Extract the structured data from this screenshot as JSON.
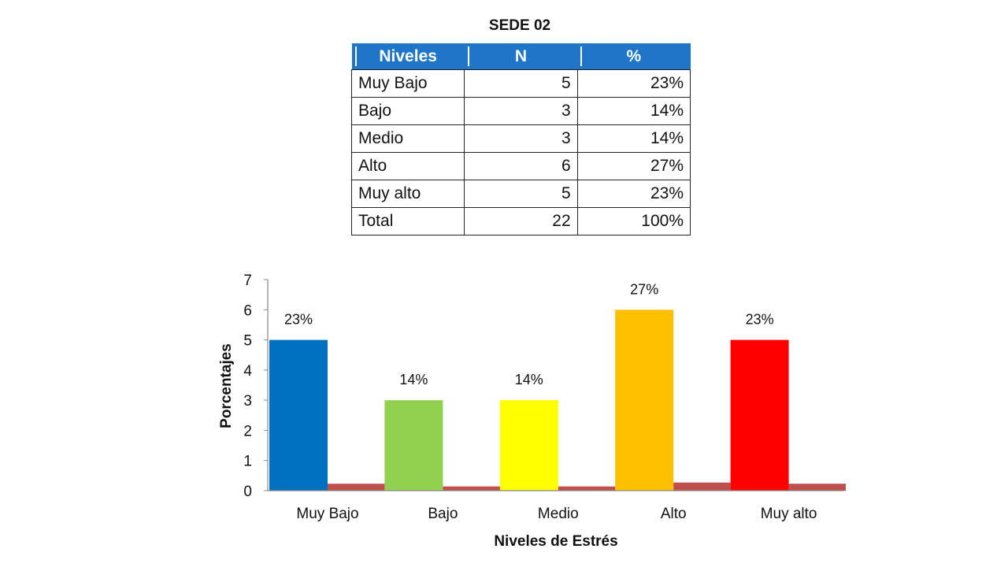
{
  "title": "SEDE 02",
  "table": {
    "headers": [
      "Niveles",
      "N",
      "%"
    ],
    "rows": [
      {
        "label": "Muy Bajo",
        "n": "5",
        "pct": "23%"
      },
      {
        "label": "Bajo",
        "n": "3",
        "pct": "14%"
      },
      {
        "label": "Medio",
        "n": "3",
        "pct": "14%"
      },
      {
        "label": "Alto",
        "n": "6",
        "pct": "27%"
      },
      {
        "label": "Muy alto",
        "n": "5",
        "pct": "23%"
      },
      {
        "label": "Total",
        "n": "22",
        "pct": "100%"
      }
    ]
  },
  "chart_data": {
    "type": "bar",
    "categories": [
      "Muy Bajo",
      "Bajo",
      "Medio",
      "Alto",
      "Muy alto"
    ],
    "series": [
      {
        "name": "",
        "values": [
          5,
          3,
          3,
          6,
          5
        ],
        "colors": [
          "#0070c0",
          "#92d050",
          "#ffff00",
          "#ffc000",
          "#ff0000"
        ]
      },
      {
        "name": "",
        "values": [
          0.23,
          0.14,
          0.14,
          0.27,
          0.23
        ],
        "color": "#c0504d"
      }
    ],
    "data_labels": [
      "23%",
      "14%",
      "14%",
      "27%",
      "23%"
    ],
    "xlabel": "Niveles de Estrés",
    "ylabel": "Porcentajes",
    "ylim": [
      0,
      7
    ],
    "yticks": [
      0,
      1,
      2,
      3,
      4,
      5,
      6,
      7
    ],
    "grid": false,
    "legend": "none"
  }
}
